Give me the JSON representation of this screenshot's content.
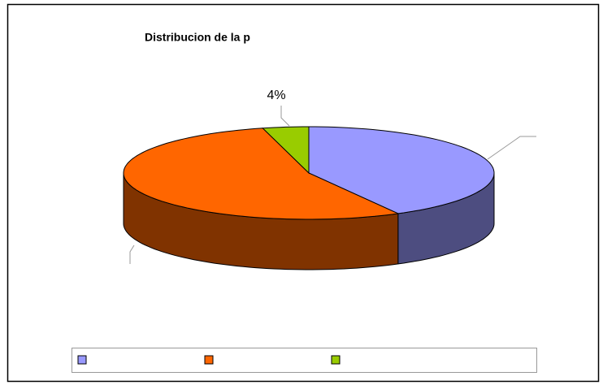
{
  "chart_data": {
    "type": "pie3d",
    "title": "Distribucion de la p",
    "categories": [
      null,
      null,
      null
    ],
    "values": [
      42,
      54,
      4
    ],
    "value_labels": [
      null,
      null,
      "4%"
    ],
    "colors": [
      "#9999ff",
      "#ff6600",
      "#99cc00"
    ],
    "side_colors": [
      "#4d4d80",
      "#803300",
      "#4d6600"
    ]
  }
}
